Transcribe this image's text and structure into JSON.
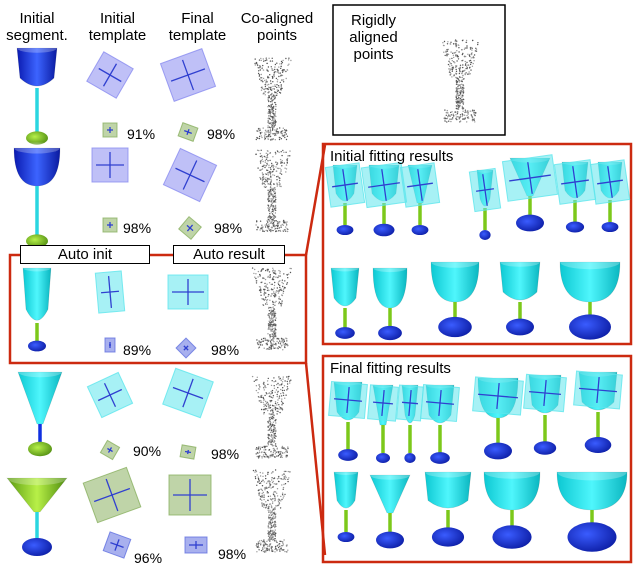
{
  "headers": {
    "col1": "Initial\nsegment.",
    "col2": "Initial\ntemplate",
    "col3": "Final\ntemplate",
    "col4": "Co-aligned\npoints"
  },
  "rigid_label": "Rigidly\naligned\npoints",
  "auto_init": "Auto init",
  "auto_result": "Auto result",
  "initial_fitting": "Initial fitting results",
  "final_fitting": "Final fitting results",
  "rows": [
    {
      "init_pct": "91%",
      "final_pct": "98%"
    },
    {
      "init_pct": "98%",
      "final_pct": "98%"
    },
    {
      "init_pct": "89%",
      "final_pct": "98%"
    },
    {
      "init_pct": "90%",
      "final_pct": "98%"
    },
    {
      "init_pct": "96%",
      "final_pct": "98%"
    }
  ],
  "colors": {
    "cyan": "#1fe6ee",
    "blue": "#1030e0",
    "green": "#7cc81a",
    "frame": "#cc2a10",
    "template": "#8a8cf0"
  }
}
